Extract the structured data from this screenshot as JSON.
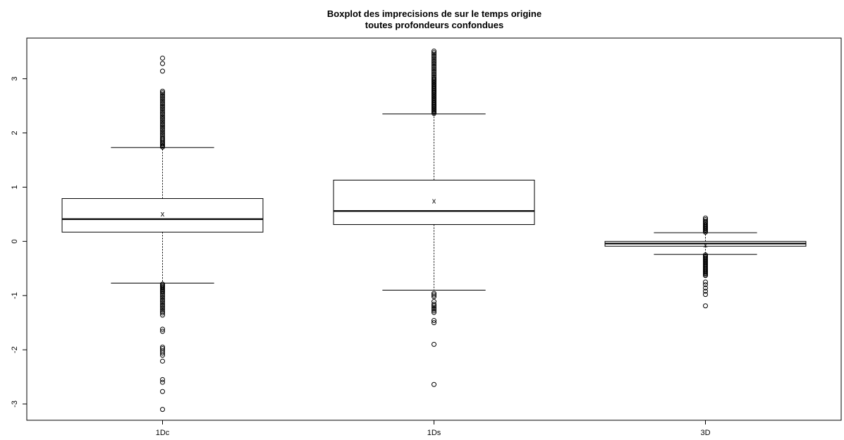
{
  "chart_data": {
    "type": "boxplot",
    "title": [
      "Boxplot des imprecisions de sur le temps origine",
      "toutes profondeurs confondues"
    ],
    "xlabel": "",
    "ylabel": "",
    "ylim": [
      -3.3,
      3.75
    ],
    "yticks": [
      -3,
      -2,
      -1,
      0,
      1,
      2,
      3
    ],
    "grid": false,
    "legend": "none",
    "categories": [
      "1Dc",
      "1Ds",
      "3D"
    ],
    "boxes": [
      {
        "label": "1Dc",
        "whisker_low": -0.77,
        "q1": 0.17,
        "median": 0.41,
        "q3": 0.79,
        "whisker_high": 1.73,
        "mean": 0.51,
        "outliers_high": [
          1.74,
          1.76,
          1.78,
          1.8,
          1.82,
          1.85,
          1.88,
          1.9,
          1.93,
          1.96,
          1.99,
          2.02,
          2.05,
          2.08,
          2.11,
          2.14,
          2.17,
          2.2,
          2.23,
          2.26,
          2.29,
          2.32,
          2.35,
          2.38,
          2.41,
          2.44,
          2.47,
          2.5,
          2.53,
          2.56,
          2.59,
          2.62,
          2.65,
          2.68,
          2.71,
          2.74,
          2.77,
          3.14,
          3.28,
          3.38
        ],
        "outliers_low": [
          -0.79,
          -0.81,
          -0.83,
          -0.85,
          -0.87,
          -0.89,
          -0.91,
          -0.93,
          -0.96,
          -0.99,
          -1.02,
          -1.05,
          -1.08,
          -1.11,
          -1.14,
          -1.17,
          -1.2,
          -1.23,
          -1.26,
          -1.29,
          -1.32,
          -1.36,
          -1.62,
          -1.66,
          -1.95,
          -1.98,
          -2.02,
          -2.06,
          -2.1,
          -2.21,
          -2.55,
          -2.6,
          -2.77,
          -3.1
        ]
      },
      {
        "label": "1Ds",
        "whisker_low": -0.9,
        "q1": 0.31,
        "median": 0.56,
        "q3": 1.13,
        "whisker_high": 2.35,
        "mean": 0.75,
        "outliers_high": [
          2.36,
          2.38,
          2.4,
          2.42,
          2.44,
          2.46,
          2.48,
          2.5,
          2.52,
          2.54,
          2.56,
          2.58,
          2.6,
          2.62,
          2.64,
          2.66,
          2.68,
          2.7,
          2.72,
          2.74,
          2.76,
          2.78,
          2.8,
          2.82,
          2.84,
          2.86,
          2.88,
          2.9,
          2.92,
          2.94,
          2.96,
          2.98,
          3.0,
          3.03,
          3.06,
          3.09,
          3.12,
          3.15,
          3.18,
          3.21,
          3.24,
          3.27,
          3.3,
          3.33,
          3.36,
          3.39,
          3.42,
          3.45,
          3.48,
          3.51
        ],
        "outliers_low": [
          -0.96,
          -0.99,
          -1.02,
          -1.11,
          -1.16,
          -1.19,
          -1.22,
          -1.25,
          -1.28,
          -1.31,
          -1.46,
          -1.5,
          -1.9,
          -2.64
        ]
      },
      {
        "label": "3D",
        "whisker_low": -0.24,
        "q1": -0.09,
        "median": -0.04,
        "q3": 0.0,
        "whisker_high": 0.16,
        "mean": -0.06,
        "outliers_high": [
          0.17,
          0.19,
          0.21,
          0.23,
          0.25,
          0.27,
          0.29,
          0.31,
          0.33,
          0.35,
          0.37,
          0.4,
          0.43
        ],
        "outliers_low": [
          -0.25,
          -0.27,
          -0.29,
          -0.31,
          -0.33,
          -0.35,
          -0.37,
          -0.39,
          -0.41,
          -0.43,
          -0.45,
          -0.47,
          -0.49,
          -0.51,
          -0.53,
          -0.55,
          -0.57,
          -0.59,
          -0.61,
          -0.63,
          -0.75,
          -0.8,
          -0.86,
          -0.92,
          -0.98,
          -1.19
        ]
      }
    ],
    "mean_marker": "x",
    "colors": {
      "stroke": "#000000",
      "background": "#ffffff",
      "box_fill": "#ffffff"
    }
  }
}
